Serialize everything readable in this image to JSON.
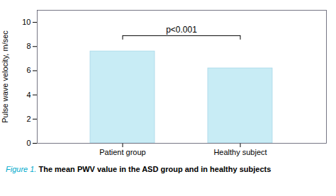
{
  "chart_data": {
    "type": "bar",
    "title": "Figure 1.",
    "subtitle": "The mean PWV value in the ASD group and in healthy subjects",
    "categories": [
      "Patient group",
      "Healthy subject"
    ],
    "values": [
      7.6,
      6.2
    ],
    "color": "#c8ecf5",
    "ylabel": "Pulse wave velocity, m/sec",
    "ylim": [
      0,
      11
    ],
    "yticks": [
      0,
      2,
      4,
      6,
      8,
      10
    ],
    "annotations": [
      {
        "text": "p<0.001",
        "y": 8.9
      }
    ]
  }
}
